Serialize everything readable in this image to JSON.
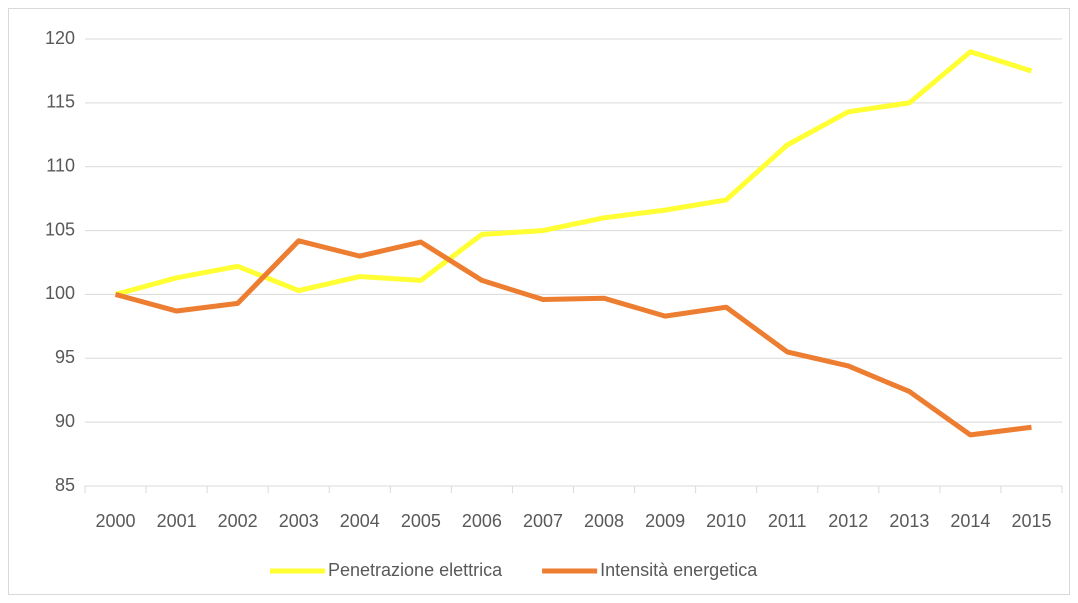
{
  "chart_data": {
    "type": "line",
    "categories": [
      "2000",
      "2001",
      "2002",
      "2003",
      "2004",
      "2005",
      "2006",
      "2007",
      "2008",
      "2009",
      "2010",
      "2011",
      "2012",
      "2013",
      "2014",
      "2015"
    ],
    "series": [
      {
        "name": "Penetrazione elettrica",
        "color": "#ffff33",
        "values": [
          100,
          101.3,
          102.2,
          100.3,
          101.4,
          101.1,
          104.7,
          105.0,
          106.0,
          106.6,
          107.4,
          111.7,
          114.3,
          115.0,
          119.0,
          117.5
        ]
      },
      {
        "name": "Intensità energetica",
        "color": "#ed7d31",
        "values": [
          100,
          98.7,
          99.3,
          104.2,
          103.0,
          104.1,
          101.1,
          99.6,
          99.7,
          98.3,
          99.0,
          95.5,
          94.4,
          92.4,
          89.0,
          89.6
        ]
      }
    ],
    "ylim": [
      85,
      120
    ],
    "yticks": [
      85,
      90,
      95,
      100,
      105,
      110,
      115,
      120
    ],
    "grid": true,
    "legend": "bottom"
  }
}
